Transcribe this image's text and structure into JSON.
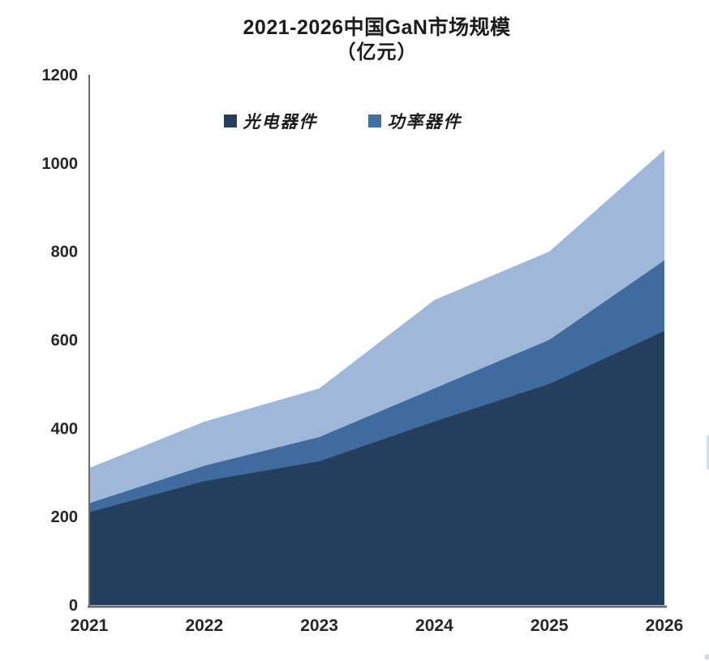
{
  "chart_data": {
    "type": "area",
    "stacked": true,
    "title": "2021-2026中国GaN市场规模",
    "subtitle": "（亿元）",
    "categories": [
      "2021",
      "2022",
      "2023",
      "2024",
      "2025",
      "2026"
    ],
    "series": [
      {
        "name": "光电器件",
        "color": "#243F5E",
        "values": [
          210,
          280,
          325,
          415,
          500,
          620
        ]
      },
      {
        "name": "功率器件",
        "color": "#3F6B9E",
        "values": [
          20,
          35,
          55,
          75,
          100,
          160
        ]
      },
      {
        "name": "",
        "color": "#9FB8D9",
        "values": [
          80,
          100,
          110,
          200,
          200,
          250
        ]
      }
    ],
    "totals": [
      310,
      415,
      490,
      690,
      800,
      1030
    ],
    "xlabel": "",
    "ylabel": "",
    "ylim": [
      0,
      1200
    ],
    "y_ticks": [
      0,
      200,
      400,
      600,
      800,
      1000,
      1200
    ],
    "grid": "off",
    "legend": {
      "position": "top-center",
      "items": [
        {
          "label": "光电器件",
          "color": "#243F5E"
        },
        {
          "label": "功率器件",
          "color": "#4170A4"
        }
      ]
    },
    "axis_color": "#6B6B6B"
  },
  "artifacts": {
    "right_edge_sliver_color": "#CFE0F2",
    "corner_dot_color": "#B8D4EE"
  }
}
